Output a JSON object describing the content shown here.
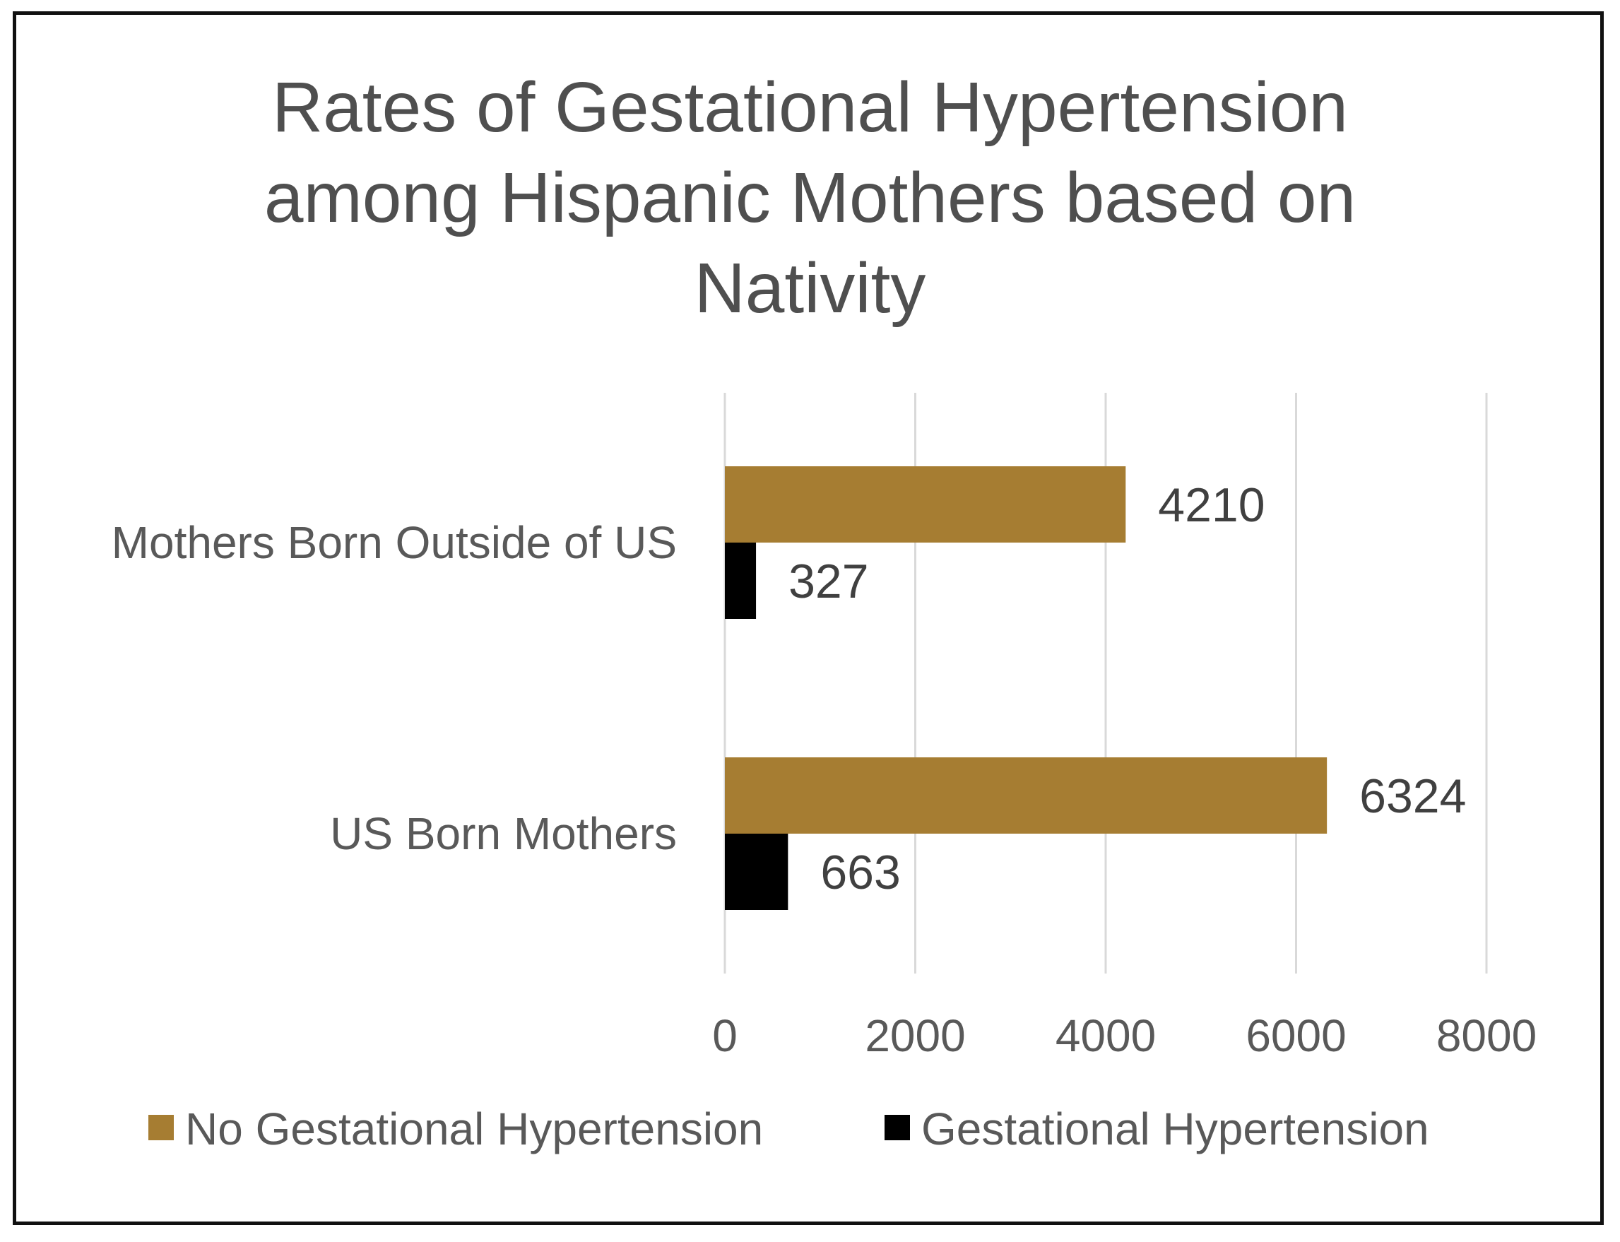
{
  "chart_data": {
    "type": "bar",
    "orientation": "horizontal",
    "title_lines": [
      "Rates of Gestational Hypertension",
      "among Hispanic Mothers based on",
      "Nativity"
    ],
    "categories": [
      "Mothers Born Outside of US",
      "US Born Mothers"
    ],
    "series": [
      {
        "name": "No Gestational Hypertension",
        "color": "#A67D32",
        "values": [
          4210,
          6324
        ]
      },
      {
        "name": "Gestational Hypertension",
        "color": "#000000",
        "values": [
          327,
          663
        ]
      }
    ],
    "xlim": [
      0,
      8000
    ],
    "xticks": [
      0,
      2000,
      4000,
      6000,
      8000
    ],
    "grid": true,
    "legend_position": "bottom"
  }
}
